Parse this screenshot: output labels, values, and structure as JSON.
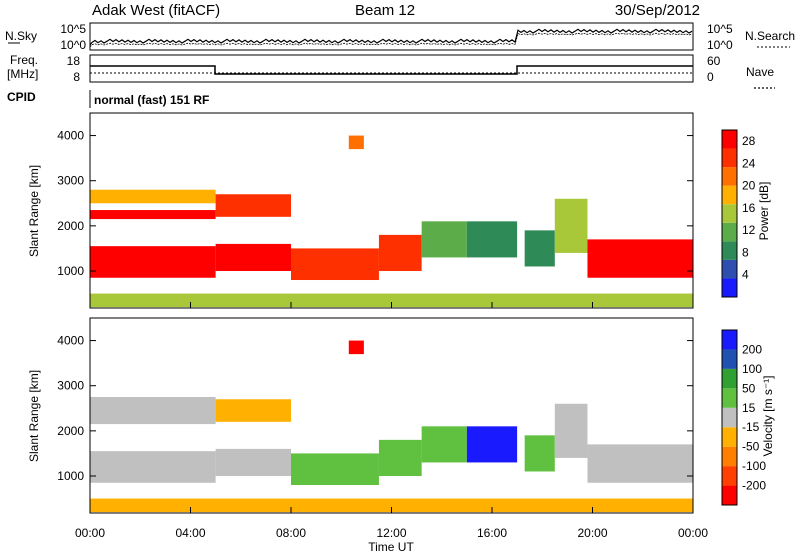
{
  "header": {
    "station": "Adak West (fitACF)",
    "beam": "Beam 12",
    "date": "30/Sep/2012"
  },
  "top_panels": {
    "nsky_label": "N.Sky",
    "nsky_ticks": [
      "10^5",
      "10^0"
    ],
    "nsearch_label": "N.Search",
    "nsearch_ticks": [
      "10^5",
      "10^0"
    ],
    "freq_label_1": "Freq.",
    "freq_label_2": "[MHz]",
    "freq_ticks": [
      "18",
      "8"
    ],
    "nave_label": "Nave",
    "nave_ticks": [
      "60",
      "0"
    ],
    "cpid_label": "CPID",
    "cpid_text": "normal (fast) 151 RF"
  },
  "chart_data": [
    {
      "type": "heatmap",
      "title": "",
      "xlabel": "Time UT",
      "ylabel": "Slant Range [km]",
      "x_ticks": [
        "00:00",
        "04:00",
        "08:00",
        "12:00",
        "16:00",
        "20:00",
        "00:00"
      ],
      "xlim": [
        0,
        24
      ],
      "y_ticks": [
        1000,
        2000,
        3000,
        4000
      ],
      "ylim": [
        180,
        4500
      ],
      "colorbar": {
        "label": "Power [dB]",
        "ticks": [
          4,
          8,
          12,
          16,
          20,
          24,
          28
        ],
        "range": [
          0,
          30
        ],
        "colors": [
          "#1a1aff",
          "#2f4fb0",
          "#2e8b57",
          "#5cad4a",
          "#a8c83a",
          "#ffb000",
          "#ff7000",
          "#ff3000",
          "#ff0000"
        ]
      },
      "regions": [
        {
          "t0": 0.0,
          "t1": 5.0,
          "r0": 850,
          "r1": 1550,
          "value": 28
        },
        {
          "t0": 0.0,
          "t1": 5.0,
          "r0": 2150,
          "r1": 2350,
          "value": 27
        },
        {
          "t0": 0.0,
          "t1": 5.0,
          "r0": 2500,
          "r1": 2800,
          "value": 18
        },
        {
          "t0": 5.0,
          "t1": 8.0,
          "r0": 1000,
          "r1": 1600,
          "value": 27
        },
        {
          "t0": 5.0,
          "t1": 8.0,
          "r0": 2200,
          "r1": 2700,
          "value": 26
        },
        {
          "t0": 8.0,
          "t1": 11.5,
          "r0": 800,
          "r1": 1500,
          "value": 26
        },
        {
          "t0": 11.5,
          "t1": 13.2,
          "r0": 1000,
          "r1": 1800,
          "value": 26
        },
        {
          "t0": 13.2,
          "t1": 15.0,
          "r0": 1300,
          "r1": 2100,
          "value": 13
        },
        {
          "t0": 15.0,
          "t1": 17.0,
          "r0": 1300,
          "r1": 2100,
          "value": 8
        },
        {
          "t0": 17.3,
          "t1": 18.5,
          "r0": 1100,
          "r1": 1900,
          "value": 9
        },
        {
          "t0": 18.5,
          "t1": 19.8,
          "r0": 1400,
          "r1": 2600,
          "value": 14
        },
        {
          "t0": 19.8,
          "t1": 24.0,
          "r0": 850,
          "r1": 1700,
          "value": 28
        },
        {
          "t0": 10.3,
          "t1": 10.9,
          "r0": 3700,
          "r1": 4000,
          "value": 22
        },
        {
          "t0": 0.0,
          "t1": 24.0,
          "r0": 200,
          "r1": 500,
          "value": 15
        }
      ]
    },
    {
      "type": "heatmap",
      "title": "",
      "xlabel": "Time UT",
      "ylabel": "Slant Range [km]",
      "x_ticks": [
        "00:00",
        "04:00",
        "08:00",
        "12:00",
        "16:00",
        "20:00",
        "00:00"
      ],
      "xlim": [
        0,
        24
      ],
      "y_ticks": [
        1000,
        2000,
        3000,
        4000
      ],
      "ylim": [
        180,
        4500
      ],
      "colorbar": {
        "label": "Velocity [m s⁻¹]",
        "ticks": [
          200,
          100,
          50,
          15,
          -15,
          -50,
          -100,
          -200
        ],
        "range": [
          -250,
          250
        ],
        "colors": [
          "#ff0000",
          "#ff4000",
          "#ff8000",
          "#ffb000",
          "#c0c0c0",
          "#60c040",
          "#30a030",
          "#2050b0",
          "#1a1aff"
        ]
      },
      "regions": [
        {
          "t0": 0.0,
          "t1": 5.0,
          "r0": 850,
          "r1": 1550,
          "value": 0
        },
        {
          "t0": 0.0,
          "t1": 5.0,
          "r0": 2150,
          "r1": 2750,
          "value": 0
        },
        {
          "t0": 5.0,
          "t1": 8.0,
          "r0": 1000,
          "r1": 1600,
          "value": 0
        },
        {
          "t0": 5.0,
          "t1": 8.0,
          "r0": 2200,
          "r1": 2700,
          "value": -60
        },
        {
          "t0": 8.0,
          "t1": 11.5,
          "r0": 800,
          "r1": 1500,
          "value": 60
        },
        {
          "t0": 11.5,
          "t1": 13.2,
          "r0": 1000,
          "r1": 1800,
          "value": 70
        },
        {
          "t0": 13.2,
          "t1": 15.0,
          "r0": 1300,
          "r1": 2100,
          "value": 80
        },
        {
          "t0": 15.0,
          "t1": 17.0,
          "r0": 1300,
          "r1": 2100,
          "value": 220
        },
        {
          "t0": 17.3,
          "t1": 18.5,
          "r0": 1100,
          "r1": 1900,
          "value": 80
        },
        {
          "t0": 18.5,
          "t1": 19.8,
          "r0": 1400,
          "r1": 2600,
          "value": 0
        },
        {
          "t0": 19.8,
          "t1": 24.0,
          "r0": 850,
          "r1": 1700,
          "value": 0
        },
        {
          "t0": 10.3,
          "t1": 10.9,
          "r0": 3700,
          "r1": 4000,
          "value": -200
        },
        {
          "t0": 0.0,
          "t1": 24.0,
          "r0": 200,
          "r1": 500,
          "value": -60
        }
      ]
    }
  ]
}
